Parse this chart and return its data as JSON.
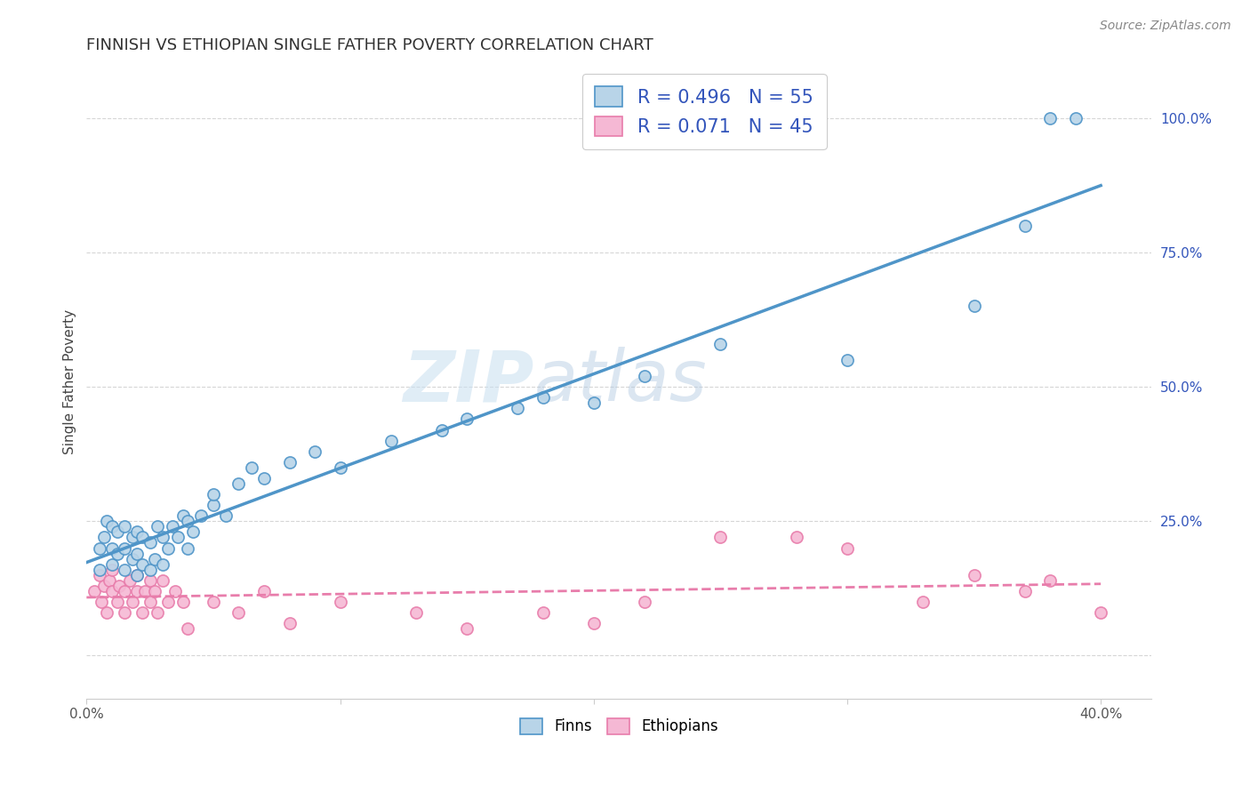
{
  "title": "FINNISH VS ETHIOPIAN SINGLE FATHER POVERTY CORRELATION CHART",
  "source_text": "Source: ZipAtlas.com",
  "ylabel": "Single Father Poverty",
  "xlim": [
    0.0,
    0.42
  ],
  "ylim": [
    -0.08,
    1.1
  ],
  "finn_R": 0.496,
  "finn_N": 55,
  "ethiopian_R": 0.071,
  "ethiopian_N": 45,
  "finn_color": "#4f95c8",
  "finn_fill": "#b8d4e8",
  "ethiopian_color": "#e87dab",
  "ethiopian_fill": "#f5b8d4",
  "watermark_zip": "ZIP",
  "watermark_atlas": "atlas",
  "title_fontsize": 13,
  "legend_text_color": "#3355bb",
  "finn_scatter_x": [
    0.005,
    0.005,
    0.007,
    0.008,
    0.01,
    0.01,
    0.01,
    0.012,
    0.012,
    0.015,
    0.015,
    0.015,
    0.018,
    0.018,
    0.02,
    0.02,
    0.02,
    0.022,
    0.022,
    0.025,
    0.025,
    0.027,
    0.028,
    0.03,
    0.03,
    0.032,
    0.034,
    0.036,
    0.038,
    0.04,
    0.04,
    0.042,
    0.045,
    0.05,
    0.05,
    0.055,
    0.06,
    0.065,
    0.07,
    0.08,
    0.09,
    0.1,
    0.12,
    0.14,
    0.15,
    0.17,
    0.18,
    0.2,
    0.22,
    0.25,
    0.3,
    0.35,
    0.37,
    0.38,
    0.39
  ],
  "finn_scatter_y": [
    0.16,
    0.2,
    0.22,
    0.25,
    0.17,
    0.2,
    0.24,
    0.19,
    0.23,
    0.16,
    0.2,
    0.24,
    0.18,
    0.22,
    0.15,
    0.19,
    0.23,
    0.17,
    0.22,
    0.16,
    0.21,
    0.18,
    0.24,
    0.17,
    0.22,
    0.2,
    0.24,
    0.22,
    0.26,
    0.2,
    0.25,
    0.23,
    0.26,
    0.28,
    0.3,
    0.26,
    0.32,
    0.35,
    0.33,
    0.36,
    0.38,
    0.35,
    0.4,
    0.42,
    0.44,
    0.46,
    0.48,
    0.47,
    0.52,
    0.58,
    0.55,
    0.65,
    0.8,
    1.0,
    1.0
  ],
  "ethiopian_scatter_x": [
    0.003,
    0.005,
    0.006,
    0.007,
    0.008,
    0.009,
    0.01,
    0.01,
    0.012,
    0.013,
    0.015,
    0.015,
    0.017,
    0.018,
    0.02,
    0.02,
    0.022,
    0.023,
    0.025,
    0.025,
    0.027,
    0.028,
    0.03,
    0.032,
    0.035,
    0.038,
    0.04,
    0.05,
    0.06,
    0.07,
    0.08,
    0.1,
    0.13,
    0.15,
    0.18,
    0.2,
    0.22,
    0.25,
    0.28,
    0.3,
    0.33,
    0.35,
    0.37,
    0.38,
    0.4
  ],
  "ethiopian_scatter_y": [
    0.12,
    0.15,
    0.1,
    0.13,
    0.08,
    0.14,
    0.12,
    0.16,
    0.1,
    0.13,
    0.08,
    0.12,
    0.14,
    0.1,
    0.12,
    0.15,
    0.08,
    0.12,
    0.1,
    0.14,
    0.12,
    0.08,
    0.14,
    0.1,
    0.12,
    0.1,
    0.05,
    0.1,
    0.08,
    0.12,
    0.06,
    0.1,
    0.08,
    0.05,
    0.08,
    0.06,
    0.1,
    0.22,
    0.22,
    0.2,
    0.1,
    0.15,
    0.12,
    0.14,
    0.08
  ]
}
